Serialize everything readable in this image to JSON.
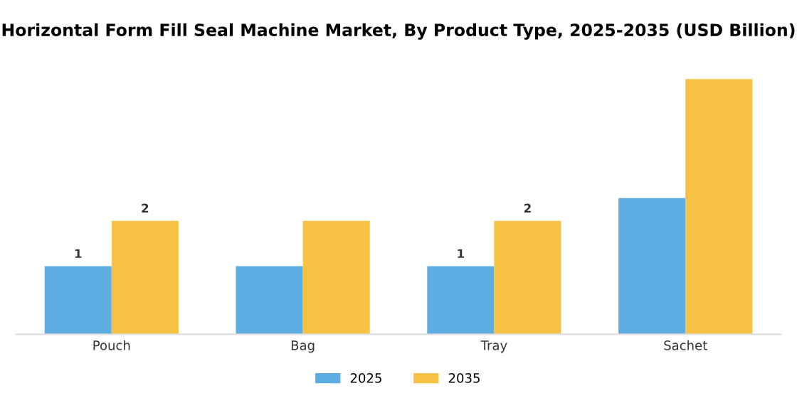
{
  "chart_data": {
    "type": "bar",
    "title": "Horizontal Form Fill Seal Machine Market, By Product Type, 2025-2035 (USD Billion)",
    "categories": [
      "Pouch",
      "Bag",
      "Tray",
      "Sachet"
    ],
    "series": [
      {
        "name": "2025",
        "color": "#5dade2",
        "values": [
          1.2,
          1.2,
          1.2,
          2.4
        ],
        "value_labels": [
          "1",
          null,
          "1",
          null
        ]
      },
      {
        "name": "2035",
        "color": "#f7c244",
        "values": [
          2.0,
          2.0,
          2.0,
          4.5
        ],
        "value_labels": [
          "2",
          null,
          "2",
          null
        ]
      }
    ],
    "legend": "bottom",
    "grid": false,
    "tick_labels": "x"
  }
}
